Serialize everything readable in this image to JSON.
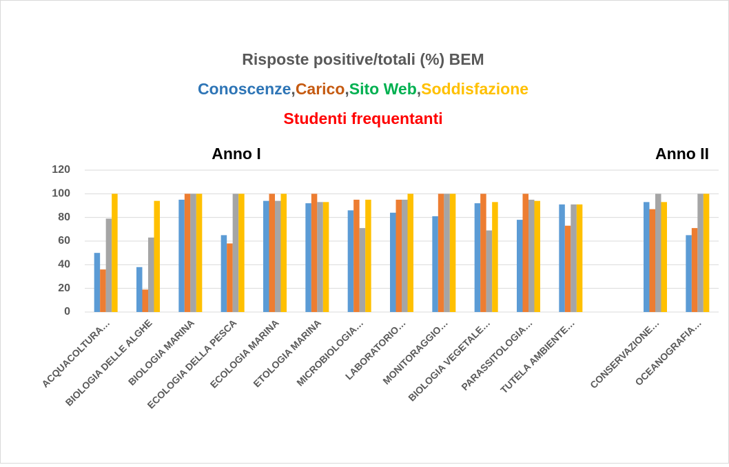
{
  "chart_data": {
    "type": "bar",
    "title": "Risposte positive/totali (%) BEM",
    "legend_separator": ",",
    "subtitle": "Studenti frequentanti",
    "annotations": [
      "Anno I",
      "Anno II"
    ],
    "categories": [
      "ACQUACOLTURA…",
      "BIOLOGIA DELLE ALGHE",
      "BIOLOGIA MARINA",
      "ECOLOGIA DELLA PESCA",
      "ECOLOGIA MARINA",
      "ETOLOGIA MARINA",
      "MICROBIOLOGIA…",
      "LABORATORIO…",
      "MONITORAGGIO…",
      "BIOLOGIA VEGETALE…",
      "PARASSITOLOGIA…",
      "TUTELA  AMBIENTE…",
      null,
      "CONSERVAZIONE…",
      "OCEANOGRAFIA…"
    ],
    "series": [
      {
        "name": "Conoscenze",
        "color": "#5b9bd5",
        "label_color": "#2e75b6",
        "values": [
          50,
          38,
          95,
          65,
          94,
          92,
          86,
          84,
          81,
          92,
          78,
          91,
          null,
          93,
          65
        ]
      },
      {
        "name": "Carico",
        "color": "#ed7d31",
        "label_color": "#c55a11",
        "values": [
          36,
          19,
          100,
          58,
          100,
          100,
          95,
          95,
          100,
          100,
          100,
          73,
          null,
          87,
          71
        ]
      },
      {
        "name": "Sito Web",
        "color": "#a5a5a5",
        "label_color": "#00b050",
        "values": [
          79,
          63,
          100,
          100,
          94,
          93,
          71,
          95,
          100,
          69,
          95,
          91,
          null,
          100,
          100
        ]
      },
      {
        "name": "Soddisfazione",
        "color": "#ffc000",
        "label_color": "#ffc000",
        "values": [
          100,
          94,
          100,
          100,
          100,
          93,
          95,
          100,
          100,
          93,
          94,
          91,
          null,
          93,
          100
        ]
      }
    ],
    "ylim": [
      0,
      120
    ],
    "yticks": [
      0,
      20,
      40,
      60,
      80,
      100,
      120
    ],
    "grid": true
  }
}
